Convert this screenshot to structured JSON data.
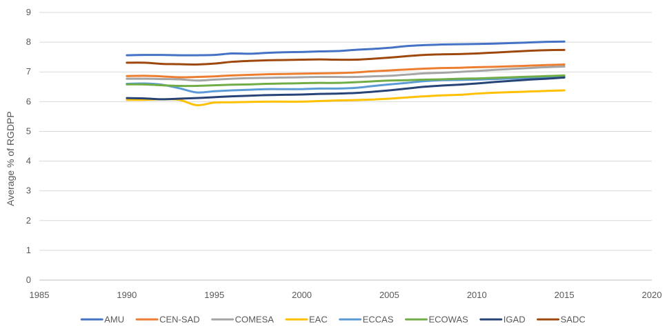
{
  "chart_data": {
    "type": "line",
    "title": "",
    "xlabel": "",
    "ylabel": "Average % of RGDPP",
    "xlim": [
      1985,
      2020
    ],
    "ylim": [
      0,
      9
    ],
    "xticks": [
      1985,
      1990,
      1995,
      2000,
      2005,
      2010,
      2015,
      2020
    ],
    "yticks": [
      0,
      1,
      2,
      3,
      4,
      5,
      6,
      7,
      8,
      9
    ],
    "grid": "horizontal",
    "legend_position": "bottom",
    "x": [
      1990,
      1991,
      1992,
      1993,
      1994,
      1995,
      1996,
      1997,
      1998,
      1999,
      2000,
      2001,
      2002,
      2003,
      2004,
      2005,
      2006,
      2007,
      2008,
      2009,
      2010,
      2011,
      2012,
      2013,
      2014,
      2015
    ],
    "series": [
      {
        "name": "AMU",
        "color": "#4472C4",
        "values": [
          7.56,
          7.57,
          7.57,
          7.56,
          7.56,
          7.57,
          7.62,
          7.61,
          7.64,
          7.66,
          7.67,
          7.69,
          7.7,
          7.74,
          7.77,
          7.81,
          7.87,
          7.9,
          7.92,
          7.93,
          7.94,
          7.95,
          7.97,
          7.99,
          8.01,
          8.02
        ]
      },
      {
        "name": "CEN-SAD",
        "color": "#ED7D31",
        "values": [
          6.86,
          6.87,
          6.85,
          6.82,
          6.83,
          6.85,
          6.88,
          6.9,
          6.92,
          6.93,
          6.94,
          6.95,
          6.96,
          6.98,
          7.02,
          7.05,
          7.08,
          7.11,
          7.13,
          7.14,
          7.16,
          7.17,
          7.19,
          7.21,
          7.23,
          7.25
        ]
      },
      {
        "name": "COMESA",
        "color": "#A5A5A5",
        "values": [
          6.77,
          6.77,
          6.76,
          6.75,
          6.71,
          6.74,
          6.77,
          6.79,
          6.8,
          6.81,
          6.82,
          6.83,
          6.83,
          6.83,
          6.85,
          6.87,
          6.91,
          6.95,
          6.97,
          7.0,
          7.03,
          7.07,
          7.1,
          7.13,
          7.16,
          7.18
        ]
      },
      {
        "name": "EAC",
        "color": "#FFC000",
        "values": [
          6.06,
          6.06,
          6.08,
          6.06,
          5.88,
          5.97,
          5.98,
          5.99,
          6.0,
          6.0,
          6.0,
          6.02,
          6.04,
          6.05,
          6.07,
          6.1,
          6.14,
          6.18,
          6.21,
          6.23,
          6.27,
          6.3,
          6.32,
          6.34,
          6.36,
          6.38
        ]
      },
      {
        "name": "ECCAS",
        "color": "#5B9BD5",
        "values": [
          6.6,
          6.61,
          6.57,
          6.45,
          6.31,
          6.35,
          6.38,
          6.4,
          6.42,
          6.42,
          6.42,
          6.44,
          6.44,
          6.46,
          6.52,
          6.58,
          6.63,
          6.69,
          6.72,
          6.73,
          6.74,
          6.76,
          6.78,
          6.8,
          6.82,
          6.84
        ]
      },
      {
        "name": "ECOWAS",
        "color": "#70AD47",
        "values": [
          6.58,
          6.58,
          6.55,
          6.53,
          6.53,
          6.55,
          6.57,
          6.58,
          6.6,
          6.61,
          6.62,
          6.63,
          6.63,
          6.65,
          6.68,
          6.71,
          6.72,
          6.74,
          6.75,
          6.77,
          6.78,
          6.8,
          6.82,
          6.84,
          6.86,
          6.88
        ]
      },
      {
        "name": "IGAD",
        "color": "#264478",
        "values": [
          6.12,
          6.11,
          6.08,
          6.1,
          6.12,
          6.15,
          6.18,
          6.2,
          6.22,
          6.23,
          6.24,
          6.26,
          6.27,
          6.29,
          6.33,
          6.38,
          6.44,
          6.5,
          6.54,
          6.57,
          6.61,
          6.66,
          6.7,
          6.74,
          6.77,
          6.81
        ]
      },
      {
        "name": "SADC",
        "color": "#9E480E",
        "values": [
          7.31,
          7.31,
          7.27,
          7.26,
          7.25,
          7.28,
          7.34,
          7.37,
          7.39,
          7.4,
          7.41,
          7.42,
          7.41,
          7.41,
          7.44,
          7.48,
          7.53,
          7.57,
          7.59,
          7.6,
          7.62,
          7.65,
          7.68,
          7.71,
          7.73,
          7.74
        ]
      }
    ]
  }
}
